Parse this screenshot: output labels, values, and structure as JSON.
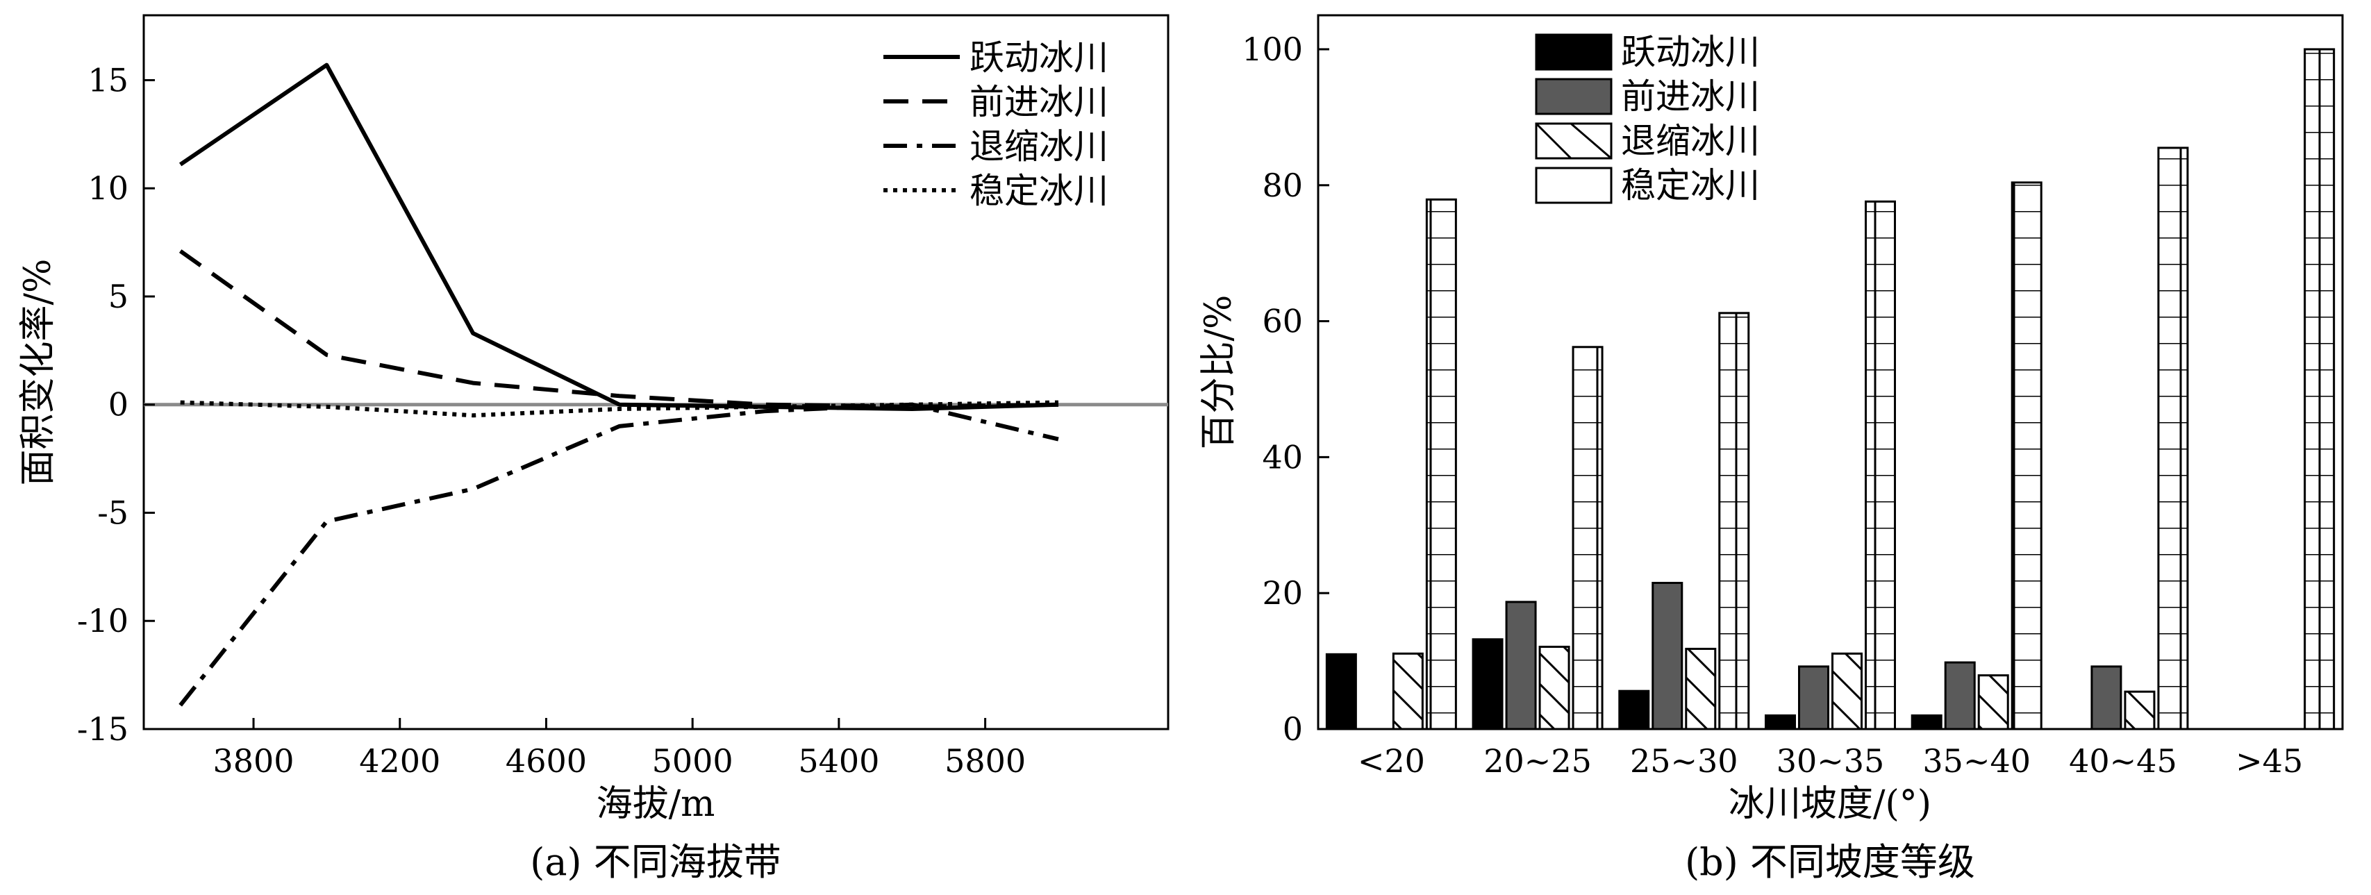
{
  "chart_data": [
    {
      "type": "line",
      "caption": "(a) 不同海拔带",
      "xlabel": "海拔/m",
      "ylabel": "面积变化率/%",
      "xlim": [
        3500,
        6300
      ],
      "ylim": [
        -15,
        18
      ],
      "xticks": [
        3800,
        4200,
        4600,
        5000,
        5400,
        5800
      ],
      "yticks": [
        -15,
        -10,
        -5,
        0,
        5,
        10,
        15
      ],
      "x": [
        3600,
        4000,
        4400,
        4800,
        5200,
        5600,
        6000
      ],
      "legend_position": "top-right",
      "zero_line": true,
      "series": [
        {
          "name": "跃动冰川",
          "style": "solid",
          "values": [
            11.1,
            15.7,
            3.3,
            0.0,
            -0.1,
            -0.2,
            0.0
          ]
        },
        {
          "name": "前进冰川",
          "style": "dashed",
          "values": [
            7.1,
            2.3,
            1.0,
            0.4,
            0.0,
            -0.1,
            0.0
          ]
        },
        {
          "name": "退缩冰川",
          "style": "dashdot",
          "values": [
            -13.9,
            -5.4,
            -3.9,
            -1.0,
            -0.3,
            0.0,
            -1.6
          ]
        },
        {
          "name": "稳定冰川",
          "style": "dotted",
          "values": [
            0.1,
            -0.1,
            -0.5,
            -0.2,
            -0.1,
            0.0,
            0.1
          ]
        }
      ]
    },
    {
      "type": "bar",
      "caption": "(b) 不同坡度等级",
      "xlabel": "冰川坡度/(°)",
      "ylabel": "百分比/%",
      "ylim": [
        0,
        105
      ],
      "yticks": [
        0,
        20,
        40,
        60,
        80,
        100
      ],
      "categories": [
        "<20",
        "20~25",
        "25~30",
        "30~35",
        "35~40",
        "40~45",
        ">45"
      ],
      "legend_position": "top-left",
      "series": [
        {
          "name": "跃动冰川",
          "fill": "#000000",
          "pattern": "solid",
          "values": [
            11.0,
            13.2,
            5.6,
            2.0,
            2.0,
            0,
            0
          ]
        },
        {
          "name": "前进冰川",
          "fill": "#5a5a5a",
          "pattern": "solid",
          "values": [
            0,
            18.7,
            21.5,
            9.2,
            9.8,
            9.2,
            0
          ]
        },
        {
          "name": "退缩冰川",
          "fill": "#ffffff",
          "pattern": "diagonal",
          "values": [
            11.1,
            12.1,
            11.8,
            11.1,
            7.9,
            5.5,
            0
          ]
        },
        {
          "name": "稳定冰川",
          "fill": "#ffffff",
          "pattern": "grid",
          "values": [
            77.9,
            56.2,
            61.2,
            77.6,
            80.4,
            85.5,
            100.0
          ]
        }
      ]
    }
  ]
}
